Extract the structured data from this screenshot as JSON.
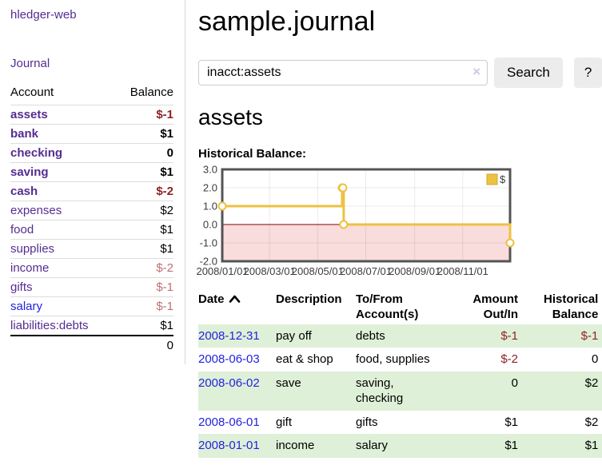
{
  "app": {
    "title": "hledger-web"
  },
  "theme": {
    "link_purple": "#552d90",
    "link_blue": "#2323dd",
    "negative_red": "#8f2222",
    "negative_soft_red": "#bd6f74",
    "row_stripe_green": "#dff0d8",
    "chart_series_yellow": "#edc240"
  },
  "sidebar": {
    "journal_link": "Journal",
    "accounts": {
      "headers": {
        "account": "Account",
        "balance": "Balance"
      },
      "rows": [
        {
          "account": "assets",
          "balance": "$-1",
          "depth": 1,
          "matched": true
        },
        {
          "account": "bank",
          "balance": "$1",
          "depth": 2,
          "matched": true
        },
        {
          "account": "checking",
          "balance": "0",
          "depth": 3,
          "matched": true
        },
        {
          "account": "saving",
          "balance": "$1",
          "depth": 3,
          "matched": true
        },
        {
          "account": "cash",
          "balance": "$-2",
          "depth": 2,
          "matched": true
        },
        {
          "account": "expenses",
          "balance": "$2",
          "depth": 1,
          "matched": false
        },
        {
          "account": "food",
          "balance": "$1",
          "depth": 2,
          "matched": false
        },
        {
          "account": "supplies",
          "balance": "$1",
          "depth": 2,
          "matched": false
        },
        {
          "account": "income",
          "balance": "$-2",
          "depth": 1,
          "matched": false
        },
        {
          "account": "gifts",
          "balance": "$-1",
          "depth": 2,
          "matched": false
        },
        {
          "account": "salary",
          "balance": "$-1",
          "depth": 2,
          "matched": false
        },
        {
          "account": "liabilities:debts",
          "balance": "$1",
          "depth": 1,
          "matched": false
        }
      ],
      "total": "0"
    }
  },
  "main": {
    "title": "sample.journal",
    "search": {
      "value": "inacct:assets",
      "clear_icon": "×",
      "search_button": "Search",
      "help_button": "?"
    },
    "account_heading": "assets",
    "chart_title": "Historical Balance:"
  },
  "chart_data": {
    "type": "line",
    "step": true,
    "title": "Historical Balance",
    "series": [
      {
        "name": "$",
        "color": "#edc240",
        "points": [
          [
            "2008-01-01",
            1
          ],
          [
            "2008-06-01",
            2
          ],
          [
            "2008-06-02",
            2
          ],
          [
            "2008-06-03",
            0
          ],
          [
            "2008-12-31",
            -1
          ]
        ]
      }
    ],
    "xlim": [
      "2008-01-01",
      "2008-12-31"
    ],
    "ylim": [
      -2,
      3
    ],
    "y_ticks": [
      3.0,
      2.0,
      1.0,
      0.0,
      -1.0,
      -2.0
    ],
    "x_ticks": [
      "2008/01/01",
      "2008/03/01",
      "2008/05/01",
      "2008/07/01",
      "2008/09/01",
      "2008/11/01"
    ],
    "legend_position": "top-right",
    "grid": true,
    "negative_region_color": "#f9dcdc",
    "zero_line_color": "#800000",
    "border_color": "#545454"
  },
  "register": {
    "headers": {
      "date": "Date",
      "description": "Description",
      "accounts": "To/From Account(s)",
      "amount": "Amount Out/In",
      "balance": "Historical Balance"
    },
    "rows": [
      {
        "date": "2008-12-31",
        "description": "pay off",
        "accounts": "debts",
        "amount": "$-1",
        "balance": "$-1"
      },
      {
        "date": "2008-06-03",
        "description": "eat & shop",
        "accounts": "food, supplies",
        "amount": "$-2",
        "balance": "0"
      },
      {
        "date": "2008-06-02",
        "description": "save",
        "accounts": "saving,\nchecking",
        "amount": "0",
        "balance": "$2"
      },
      {
        "date": "2008-06-01",
        "description": "gift",
        "accounts": "gifts",
        "amount": "$1",
        "balance": "$2"
      },
      {
        "date": "2008-01-01",
        "description": "income",
        "accounts": "salary",
        "amount": "$1",
        "balance": "$1"
      }
    ]
  }
}
